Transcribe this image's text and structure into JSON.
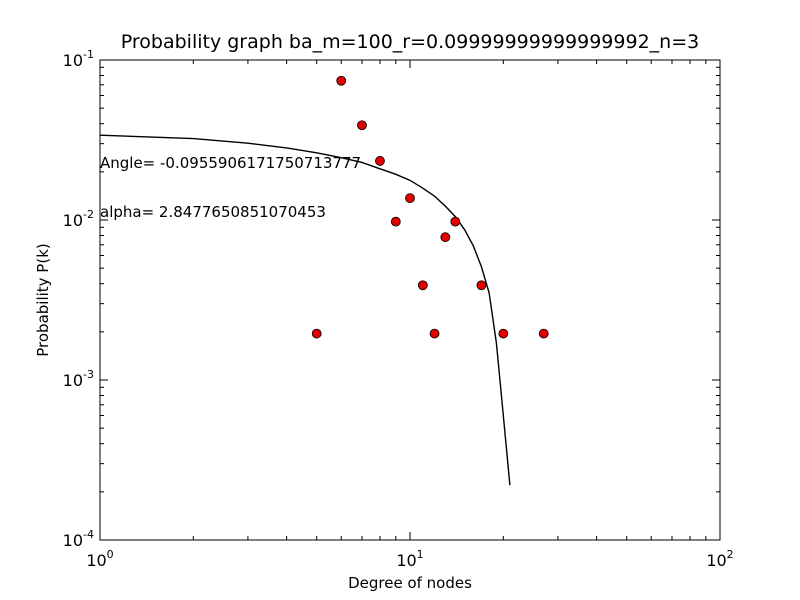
{
  "chart_data": {
    "type": "scatter",
    "title": "Probability graph ba_m=100_r=0.09999999999999992_n=3",
    "xlabel": "Degree of nodes",
    "ylabel": "Probability P(k)",
    "xscale": "log",
    "yscale": "log",
    "xlim": [
      1,
      100
    ],
    "ylim": [
      0.0001,
      0.1
    ],
    "x_ticks": [
      {
        "value": 1,
        "base": "10",
        "exp": "0"
      },
      {
        "value": 10,
        "base": "10",
        "exp": "1"
      },
      {
        "value": 100,
        "base": "10",
        "exp": "2"
      }
    ],
    "y_ticks": [
      {
        "value": 0.0001,
        "base": "10",
        "exp": "-4"
      },
      {
        "value": 0.001,
        "base": "10",
        "exp": "-3"
      },
      {
        "value": 0.01,
        "base": "10",
        "exp": "-2"
      },
      {
        "value": 0.1,
        "base": "10",
        "exp": "-1"
      }
    ],
    "grid": false,
    "point_color": "#e00000",
    "line_color": "#000000",
    "points": [
      {
        "x": 5,
        "y": 0.00195
      },
      {
        "x": 6,
        "y": 0.0742
      },
      {
        "x": 7,
        "y": 0.0391
      },
      {
        "x": 8,
        "y": 0.0234
      },
      {
        "x": 9,
        "y": 0.00977
      },
      {
        "x": 10,
        "y": 0.0137
      },
      {
        "x": 11,
        "y": 0.00391
      },
      {
        "x": 12,
        "y": 0.00195
      },
      {
        "x": 13,
        "y": 0.00781
      },
      {
        "x": 14,
        "y": 0.00977
      },
      {
        "x": 17,
        "y": 0.00391
      },
      {
        "x": 20,
        "y": 0.00195
      },
      {
        "x": 27,
        "y": 0.00195
      }
    ],
    "fit_line": [
      {
        "x": 1,
        "y": 0.0339
      },
      {
        "x": 2,
        "y": 0.0323
      },
      {
        "x": 3,
        "y": 0.0302
      },
      {
        "x": 4,
        "y": 0.0282
      },
      {
        "x": 5,
        "y": 0.0263
      },
      {
        "x": 6,
        "y": 0.0245
      },
      {
        "x": 7,
        "y": 0.0229
      },
      {
        "x": 8,
        "y": 0.0209
      },
      {
        "x": 9,
        "y": 0.0193
      },
      {
        "x": 10,
        "y": 0.0177
      },
      {
        "x": 11,
        "y": 0.0158
      },
      {
        "x": 12,
        "y": 0.0141
      },
      {
        "x": 13,
        "y": 0.0122
      },
      {
        "x": 14,
        "y": 0.0105
      },
      {
        "x": 15,
        "y": 0.0087
      },
      {
        "x": 16,
        "y": 0.0069
      },
      {
        "x": 17,
        "y": 0.0051
      },
      {
        "x": 18,
        "y": 0.0035
      },
      {
        "x": 19,
        "y": 0.0017
      },
      {
        "x": 20,
        "y": 0.0006
      },
      {
        "x": 21,
        "y": 0.00022
      }
    ],
    "annotations": [
      "Angle= -0.0955906171750713777",
      "alpha= 2.8477650851070453"
    ]
  }
}
